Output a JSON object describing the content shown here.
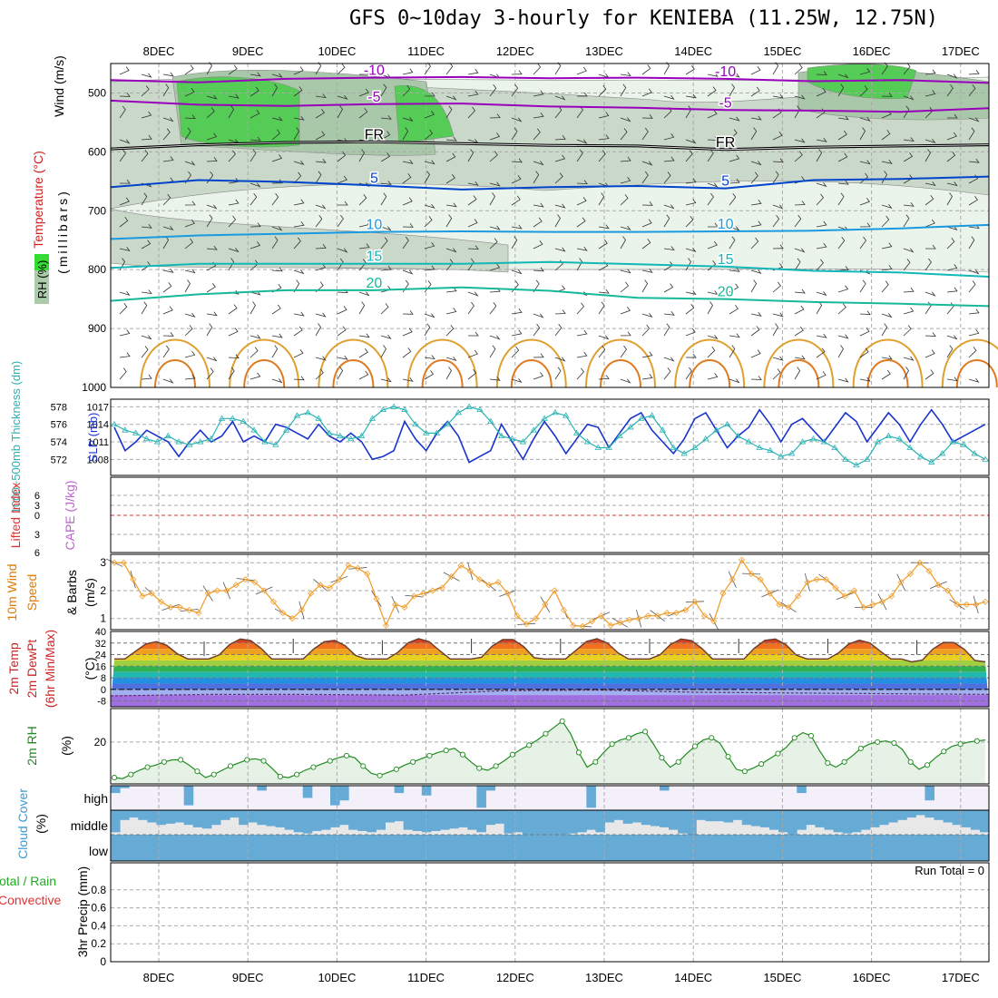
{
  "title": "GFS 0~10day 3-hourly for KENIEBA (11.25W, 12.75N)",
  "chart_data": [
    {
      "id": "upper_air",
      "type": "contour",
      "ylabel_parts": [
        {
          "text": "Wind (m/s)",
          "color": "#000000"
        },
        {
          "text": "Temperature (°C)",
          "color": "#d02020"
        },
        {
          "text": "(millibars)",
          "color": "#000000"
        },
        {
          "text": "RH (%)",
          "color": "#000000"
        }
      ],
      "y_ticks": [
        500,
        600,
        700,
        800,
        900,
        1000
      ],
      "ylim": [
        1000,
        450
      ],
      "rh_levels": [
        30,
        50,
        70,
        90
      ],
      "rh_colors": [
        "#ebf4eb",
        "#c9d8c9",
        "#a9c7a9",
        "#55cc55"
      ],
      "isotherms": [
        {
          "label": "-10",
          "color": "#9900bb",
          "pressure": [
            478,
            482,
            476,
            474,
            473,
            475,
            474,
            476,
            480,
            478,
            483
          ]
        },
        {
          "label": "-5",
          "color": "#9900bb",
          "pressure": [
            513,
            520,
            522,
            519,
            518,
            523,
            525,
            529,
            530,
            532,
            526
          ]
        },
        {
          "label": "FR",
          "color": "#000000",
          "pressure": [
            595,
            588,
            584,
            583,
            586,
            589,
            590,
            596,
            592,
            590,
            588
          ]
        },
        {
          "label": "5",
          "color": "#0044cc",
          "pressure": [
            660,
            648,
            651,
            657,
            664,
            660,
            658,
            662,
            648,
            646,
            642
          ]
        },
        {
          "label": "10",
          "color": "#1a9ae0",
          "pressure": [
            748,
            742,
            739,
            736,
            735,
            736,
            736,
            735,
            734,
            730,
            724
          ]
        },
        {
          "label": "15",
          "color": "#13b7b7",
          "pressure": [
            797,
            790,
            790,
            790,
            790,
            787,
            791,
            795,
            802,
            805,
            812
          ]
        },
        {
          "label": "20",
          "color": "#16b89a",
          "pressure": [
            853,
            842,
            835,
            835,
            830,
            836,
            848,
            850,
            855,
            858,
            862
          ]
        }
      ]
    },
    {
      "id": "thickness_slp",
      "type": "line",
      "ylabel_left": "1000~500mb Thickness (dm)",
      "ylabel_right": "SLP (mb)",
      "y_ticks_left": [
        572,
        574,
        576,
        578
      ],
      "y_ticks_right": [
        1008,
        1011,
        1014,
        1017
      ],
      "series": [
        {
          "color": "#1a33cc",
          "values": [
            1013.5,
            1009.5,
            1011,
            1013,
            1012,
            1011,
            1008.5,
            1011,
            1013,
            1011,
            1012,
            1014.5,
            1011,
            1012,
            1011,
            1014,
            1013.5,
            1012.5,
            1011.5,
            1014,
            1012,
            1011,
            1012.5,
            1011,
            1008,
            1008.5,
            1009.5,
            1014.5,
            1011.5,
            1009.5,
            1012.5,
            1014.5,
            1012,
            1007.5,
            1008.5,
            1009.5,
            1014,
            1011,
            1008,
            1011.5,
            1014.5,
            1012,
            1009,
            1011.5,
            1014,
            1013.5,
            1010,
            1012.5,
            1015,
            1016,
            1013,
            1011,
            1009,
            1011.5,
            1015,
            1016,
            1013,
            1010,
            1012,
            1013.5,
            1016.5,
            1014,
            1011,
            1014,
            1015,
            1013,
            1011,
            1013.5,
            1016,
            1014.5,
            1011,
            1013.5,
            1016,
            1014,
            1011,
            1014,
            1016.5,
            1014,
            1011,
            1012,
            1013,
            1014
          ]
        },
        {
          "color": "#2ab3b3",
          "values": [
            1014,
            1013,
            1012.5,
            1011.5,
            1011,
            1012,
            1011,
            1010.5,
            1011,
            1011.5,
            1015,
            1015,
            1014.5,
            1013,
            1011,
            1010.5,
            1013,
            1015.5,
            1016,
            1015,
            1012.5,
            1012,
            1011.5,
            1012,
            1015,
            1016.5,
            1017,
            1016.5,
            1014,
            1012.5,
            1012.5,
            1014,
            1016,
            1017,
            1016.5,
            1014.5,
            1012,
            1011.5,
            1011,
            1013,
            1015,
            1016,
            1015.5,
            1012.5,
            1011,
            1010,
            1010,
            1012,
            1013.5,
            1015,
            1015.5,
            1013,
            1010,
            1009,
            1010,
            1011.5,
            1013,
            1014,
            1012,
            1011,
            1010,
            1009.5,
            1008.5,
            1009,
            1011,
            1011.5,
            1011,
            1010,
            1008,
            1007,
            1008,
            1011,
            1012,
            1011.5,
            1010,
            1008.5,
            1007.5,
            1009,
            1011,
            1010.5,
            1009,
            1008
          ]
        }
      ]
    },
    {
      "id": "stability",
      "type": "line",
      "ylabel_left": "Lifted Index",
      "ylabel_right": "CAPE (J/kg)",
      "y_ticks": [
        "6",
        "3",
        "0",
        "3",
        "6"
      ],
      "zero_line_color": "#dd3333"
    },
    {
      "id": "surface_wind",
      "type": "line",
      "ylabel_parts": [
        {
          "text": "10m Wind",
          "color": "#e07a00"
        },
        {
          "text": "Speed",
          "color": "#e07a00"
        },
        {
          "text": "& Barbs",
          "color": "#000000"
        },
        {
          "text": "(m/s)",
          "color": "#000000"
        }
      ],
      "y_ticks": [
        1,
        2,
        3
      ],
      "ylim": [
        0.6,
        3.3
      ],
      "color": "#f0a030",
      "values": [
        3.0,
        3.0,
        2.4,
        1.8,
        1.9,
        1.6,
        1.4,
        1.4,
        1.3,
        1.2,
        1.9,
        2.0,
        2.0,
        2.2,
        2.4,
        2.3,
        2.0,
        1.6,
        1.2,
        1.0,
        1.3,
        1.9,
        2.2,
        2.1,
        2.4,
        2.9,
        2.8,
        2.6,
        1.7,
        0.75,
        1.5,
        1.4,
        1.8,
        1.9,
        2.0,
        2.1,
        2.5,
        2.9,
        2.7,
        2.4,
        2.2,
        2.3,
        1.9,
        1.1,
        0.8,
        1.0,
        1.5,
        2.0,
        1.3,
        0.75,
        0.72,
        0.9,
        1.1,
        0.75,
        0.85,
        0.95,
        1.0,
        1.1,
        1.1,
        1.2,
        1.2,
        1.3,
        1.6,
        1.1,
        0.9,
        1.9,
        2.4,
        3.1,
        2.6,
        2.4,
        1.9,
        1.5,
        1.4,
        1.8,
        2.3,
        2.4,
        2.4,
        2.1,
        1.8,
        2.0,
        1.4,
        1.5,
        1.6,
        1.8,
        2.3,
        2.6,
        3.0,
        2.7,
        2.2,
        2.0,
        1.5,
        1.5,
        1.5,
        1.6
      ]
    },
    {
      "id": "temperature",
      "type": "area",
      "ylabel_parts": [
        {
          "text": "2m Temp",
          "color": "#d02020"
        },
        {
          "text": "2m DewPt",
          "color": "#d02020"
        },
        {
          "text": "(6hr Min/Max)",
          "color": "#d02020"
        },
        {
          "text": "(°C)",
          "color": "#000000"
        }
      ],
      "y_ticks": [
        -8,
        0,
        8,
        16,
        24,
        32,
        40
      ],
      "ylim": [
        -12,
        40
      ],
      "temp_max": [
        33,
        35,
        34,
        35,
        35,
        35,
        35,
        35,
        34,
        33
      ],
      "temp_min": [
        21,
        21,
        21,
        21,
        21,
        21,
        21,
        21,
        21,
        19
      ],
      "dewpoint": [
        -4.5,
        -3.5,
        -3.5,
        -4,
        -1,
        -0.5,
        -2,
        -2.5,
        -3,
        -3.5
      ]
    },
    {
      "id": "humidity",
      "type": "area",
      "ylabel_left": "2m RH",
      "ylabel_unit": "(%)",
      "y_ticks": [
        20
      ],
      "ylim": [
        0,
        36
      ],
      "color": "#208a20",
      "values": [
        3,
        2.5,
        4.5,
        6.5,
        8,
        9,
        10.5,
        11.5,
        11.5,
        9,
        6,
        3,
        4.5,
        6.5,
        8.5,
        10,
        11.5,
        12,
        11,
        7.5,
        3.5,
        3,
        4.5,
        6.5,
        8,
        9.5,
        11,
        12.5,
        13.5,
        12.5,
        8.5,
        5,
        4,
        5.5,
        7,
        9,
        10.5,
        12,
        13.5,
        15,
        16,
        17,
        14,
        10.5,
        7.5,
        6.5,
        8.5,
        11,
        14,
        16.5,
        18.5,
        21,
        24,
        27,
        30,
        24,
        15,
        8,
        10.5,
        15,
        19,
        21,
        22,
        24,
        25,
        19,
        12.5,
        8,
        10.5,
        14.5,
        18,
        21,
        22,
        19.5,
        13,
        7,
        6,
        7.5,
        9.5,
        12,
        14.5,
        17.5,
        22,
        24.5,
        23,
        16,
        10,
        8,
        10.5,
        13.5,
        17,
        19,
        20,
        20.5,
        19.5,
        16.5,
        10.5,
        7,
        9,
        12.5,
        15.5,
        18,
        19,
        20,
        20.5,
        21
      ]
    },
    {
      "id": "cloud_cover",
      "type": "bar",
      "ylabel_left": "Cloud Cover",
      "ylabel_unit": "(%)",
      "categories": [
        "high",
        "middle",
        "low"
      ],
      "color": "#66aad6",
      "high": [
        30,
        10,
        0,
        0,
        0,
        0,
        0,
        0,
        80,
        0,
        0,
        0,
        0,
        0,
        0,
        0,
        20,
        0,
        0,
        0,
        0,
        50,
        0,
        0,
        80,
        60,
        0,
        0,
        0,
        0,
        0,
        30,
        0,
        0,
        40,
        0,
        0,
        0,
        0,
        0,
        90,
        20,
        0,
        0,
        0,
        0,
        0,
        0,
        0,
        0,
        0,
        0,
        90,
        0,
        0,
        0,
        0,
        0,
        0,
        0,
        20,
        0,
        0,
        0,
        0,
        0,
        0,
        0,
        0,
        0,
        0,
        0,
        0,
        0,
        0,
        30,
        0,
        0,
        0,
        0,
        0,
        0,
        0,
        0,
        0,
        0,
        0,
        0,
        0,
        60,
        0,
        0,
        0,
        0,
        0,
        0
      ],
      "middle": [
        90,
        40,
        30,
        40,
        50,
        60,
        55,
        50,
        60,
        70,
        75,
        60,
        40,
        30,
        60,
        50,
        60,
        65,
        70,
        80,
        90,
        95,
        85,
        80,
        70,
        60,
        80,
        85,
        90,
        80,
        50,
        45,
        80,
        85,
        90,
        85,
        80,
        75,
        70,
        80,
        90,
        60,
        55,
        95,
        90,
        100,
        100,
        100,
        100,
        100,
        95,
        90,
        80,
        90,
        50,
        40,
        55,
        50,
        60,
        65,
        70,
        80,
        95,
        100,
        40,
        45,
        45,
        50,
        40,
        60,
        65,
        70,
        80,
        90,
        100,
        80,
        60,
        70,
        80,
        90,
        95,
        90,
        80,
        70,
        60,
        50,
        40,
        30,
        20,
        30,
        40,
        50,
        60,
        70,
        80,
        90
      ]
    },
    {
      "id": "precip",
      "type": "bar",
      "ylabel_parts": [
        {
          "text": "Total / Rain",
          "color": "#22aa22"
        },
        {
          "text": "Convective",
          "color": "#dd3333"
        },
        {
          "text": "3hr Precip (mm)",
          "color": "#000000"
        }
      ],
      "y_ticks": [
        "0",
        "0.2",
        "0.4",
        "0.6",
        "0.8"
      ],
      "ylim": [
        0,
        1
      ],
      "run_total": "Run Total = 0",
      "values": []
    }
  ],
  "x_axis": {
    "labels": [
      "8DEC",
      "9DEC",
      "10DEC",
      "11DEC",
      "12DEC",
      "13DEC",
      "14DEC",
      "15DEC",
      "16DEC",
      "17DEC"
    ]
  }
}
